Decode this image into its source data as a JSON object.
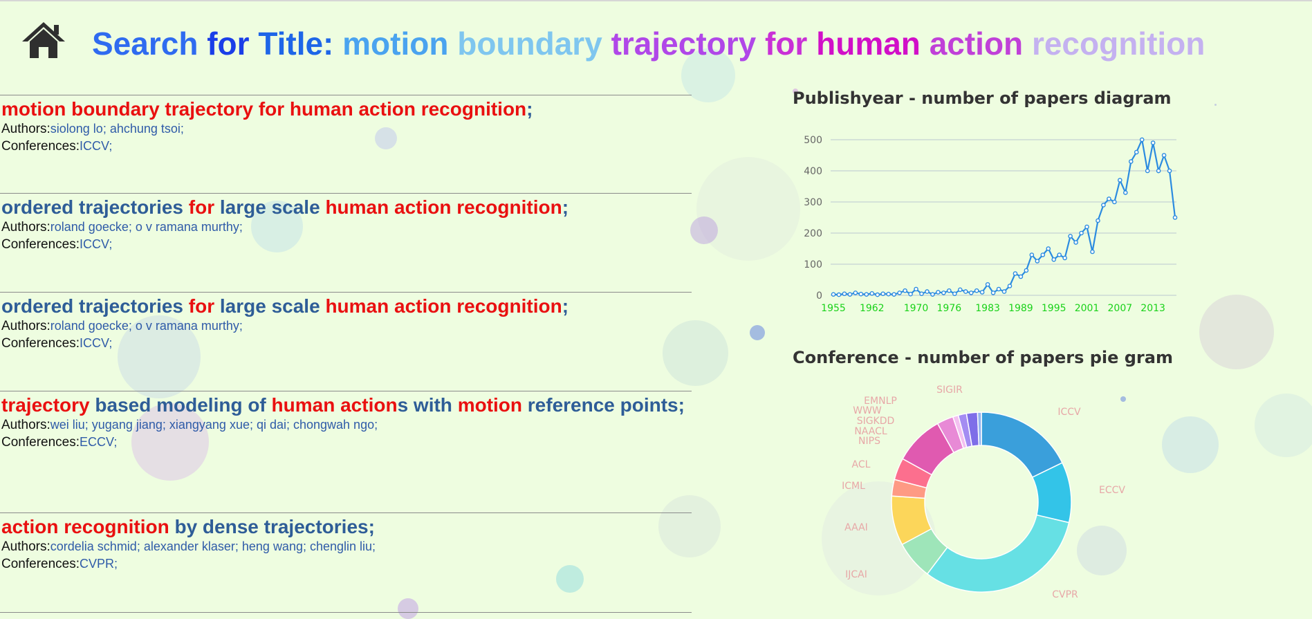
{
  "header": {
    "home_icon": "home-icon",
    "title_segments": [
      {
        "text": "Search ",
        "color": "#2f6bf0"
      },
      {
        "text": "for ",
        "color": "#1a3ee8"
      },
      {
        "text": "Title: ",
        "color": "#1e66e8"
      },
      {
        "text": "motion ",
        "color": "#4aa3ef"
      },
      {
        "text": "boundary ",
        "color": "#7fc6ef"
      },
      {
        "text": "trajectory ",
        "color": "#b047e8"
      },
      {
        "text": "for ",
        "color": "#c930d6"
      },
      {
        "text": "human ",
        "color": "#d10fc8"
      },
      {
        "text": "action ",
        "color": "#c040d8"
      },
      {
        "text": "recognition",
        "color": "#c4b1f0"
      }
    ]
  },
  "results": [
    {
      "title_parts": [
        {
          "text": "motion boundary trajectory for human action recognition",
          "hl": true
        },
        {
          "text": ";",
          "hl": false
        }
      ],
      "authors_label": "Authors:",
      "authors": "siolong lo; ahchung tsoi;",
      "conferences_label": "Conferences:",
      "conferences": "ICCV;"
    },
    {
      "title_parts": [
        {
          "text": "ordered trajectories ",
          "hl": false
        },
        {
          "text": "for",
          "hl": true
        },
        {
          "text": " large scale ",
          "hl": false
        },
        {
          "text": "human action recognition",
          "hl": true
        },
        {
          "text": ";",
          "hl": false
        }
      ],
      "authors_label": "Authors:",
      "authors": "roland goecke; o v ramana murthy;",
      "conferences_label": "Conferences:",
      "conferences": "ICCV;"
    },
    {
      "title_parts": [
        {
          "text": "ordered trajectories ",
          "hl": false
        },
        {
          "text": "for",
          "hl": true
        },
        {
          "text": " large scale ",
          "hl": false
        },
        {
          "text": "human action recognition",
          "hl": true
        },
        {
          "text": ";",
          "hl": false
        }
      ],
      "authors_label": "Authors:",
      "authors": "roland goecke; o v ramana murthy;",
      "conferences_label": "Conferences:",
      "conferences": "ICCV;"
    },
    {
      "title_parts": [
        {
          "text": "trajectory",
          "hl": true
        },
        {
          "text": " based modeling of ",
          "hl": false
        },
        {
          "text": "human action",
          "hl": true
        },
        {
          "text": "s with ",
          "hl": false
        },
        {
          "text": "motion",
          "hl": true
        },
        {
          "text": " reference points;",
          "hl": false
        }
      ],
      "authors_label": "Authors:",
      "authors": "wei liu; yugang jiang; xiangyang xue; qi dai; chongwah ngo;",
      "conferences_label": "Conferences:",
      "conferences": "ECCV;"
    },
    {
      "title_parts": [
        {
          "text": "action recognition",
          "hl": true
        },
        {
          "text": " by dense trajectories;",
          "hl": false
        }
      ],
      "authors_label": "Authors:",
      "authors": "cordelia schmid; alexander klaser; heng wang; chenglin liu;",
      "conferences_label": "Conferences:",
      "conferences": "CVPR;"
    }
  ],
  "line_chart_title": "Publishyear - number of papers diagram",
  "pie_chart_title": "Conference - number of papers pie gram",
  "chart_data": [
    {
      "type": "line",
      "title": "Publishyear - number of papers diagram",
      "xlabel": "",
      "ylabel": "",
      "ylim": [
        0,
        500
      ],
      "yticks": [
        0,
        100,
        200,
        300,
        400,
        500
      ],
      "x_tick_labels": [
        "1955",
        "1962",
        "1970",
        "1976",
        "1983",
        "1989",
        "1995",
        "2001",
        "2007",
        "2013"
      ],
      "x_tick_color": "#19d219",
      "line_color": "#2b8be0",
      "x": [
        1955,
        1956,
        1957,
        1958,
        1959,
        1960,
        1961,
        1962,
        1963,
        1964,
        1965,
        1966,
        1967,
        1968,
        1969,
        1970,
        1971,
        1972,
        1973,
        1974,
        1975,
        1976,
        1977,
        1978,
        1979,
        1980,
        1981,
        1982,
        1983,
        1984,
        1985,
        1986,
        1987,
        1988,
        1989,
        1990,
        1991,
        1992,
        1993,
        1994,
        1995,
        1996,
        1997,
        1998,
        1999,
        2000,
        2001,
        2002,
        2003,
        2004,
        2005,
        2006,
        2007,
        2008,
        2009,
        2010,
        2011,
        2012,
        2013,
        2014,
        2015,
        2016,
        2017
      ],
      "y": [
        3,
        2,
        5,
        3,
        8,
        4,
        3,
        6,
        2,
        5,
        4,
        3,
        8,
        15,
        4,
        20,
        5,
        12,
        3,
        10,
        8,
        15,
        5,
        18,
        12,
        8,
        15,
        10,
        35,
        8,
        20,
        12,
        30,
        70,
        60,
        80,
        130,
        110,
        130,
        150,
        115,
        130,
        120,
        190,
        170,
        200,
        220,
        140,
        240,
        290,
        310,
        300,
        370,
        330,
        430,
        460,
        500,
        400,
        490,
        400,
        450,
        400,
        250
      ]
    },
    {
      "type": "pie",
      "title": "Conference - number of papers pie gram",
      "donut": true,
      "label_color": "#e7a7a7",
      "categories": [
        "ICCV",
        "ECCV",
        "CVPR",
        "IJCAI",
        "AAAI",
        "ICML",
        "ACL",
        "NIPS",
        "NAACL",
        "SIGKDD",
        "WWW",
        "EMNLP",
        "SIGIR"
      ],
      "values": [
        18,
        11,
        32,
        7,
        9,
        3,
        4,
        9,
        3,
        1,
        1.5,
        2,
        0.7
      ],
      "colors": [
        "#3a9fdb",
        "#33c4e8",
        "#66e0e4",
        "#9ee5b9",
        "#fcd65a",
        "#fe9a84",
        "#fc6f8e",
        "#e05ab0",
        "#e88ad6",
        "#f3c0f0",
        "#a48cf2",
        "#7e6ee8",
        "#95b4ef"
      ]
    }
  ],
  "colors": {
    "background": "#eefde0",
    "highlight": "#e91010",
    "title_blue": "#2e5d97",
    "link_blue": "#2f5ba8"
  }
}
